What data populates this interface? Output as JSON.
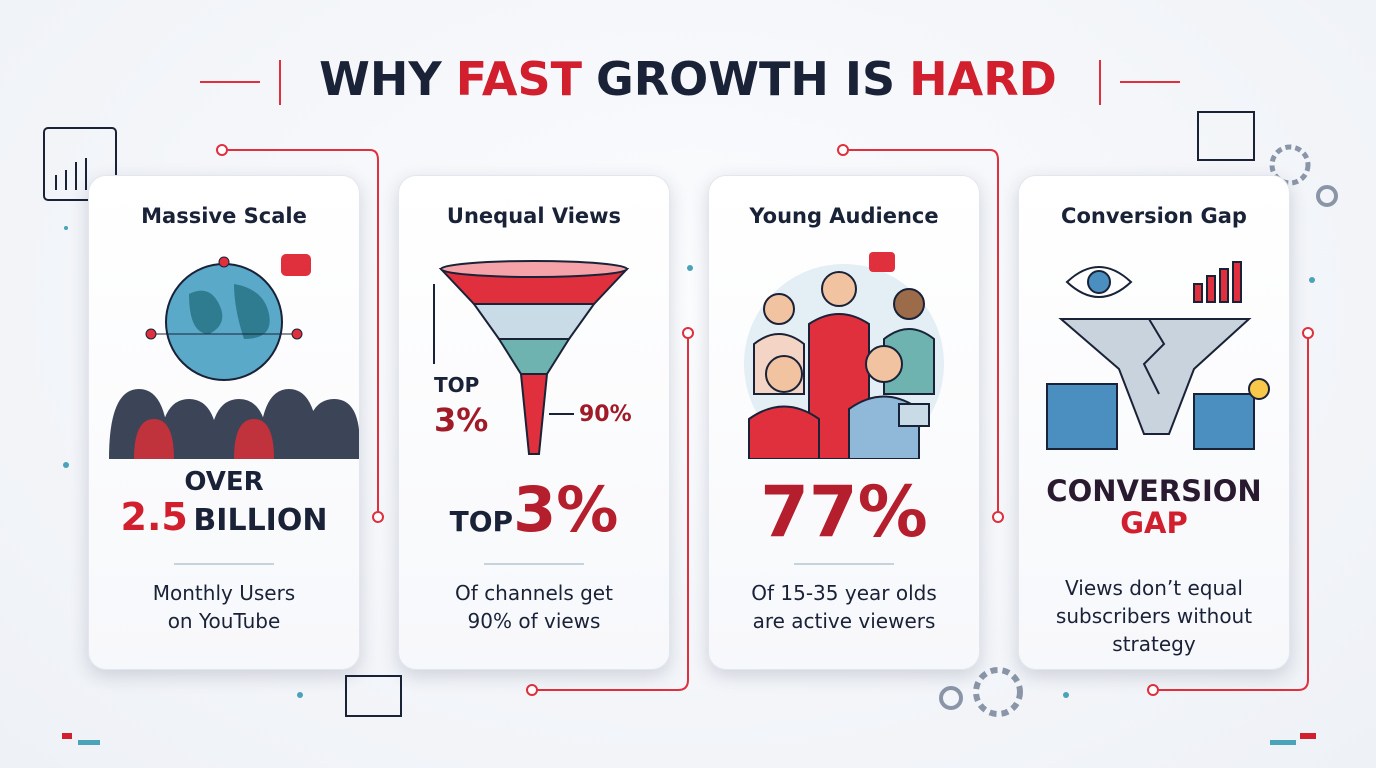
{
  "header": {
    "title": [
      {
        "text": "WHY",
        "accent": false
      },
      {
        "text": "FAST",
        "accent": true
      },
      {
        "text": "GROWTH IS",
        "accent": false
      },
      {
        "text": "HARD",
        "accent": true
      }
    ]
  },
  "cards": [
    {
      "heading": "Massive Scale",
      "stat": [
        {
          "text": "OVER",
          "style": "small"
        },
        {
          "text": "2.5",
          "style": "accent"
        },
        {
          "text": "BILLION",
          "style": "medium"
        }
      ],
      "description": [
        "Monthly Users",
        "on YouTube"
      ]
    },
    {
      "heading": "Unequal Views",
      "illustration_labels": [
        "TOP",
        "3%",
        "90%"
      ],
      "stat": [
        {
          "text": "TOP",
          "style": "small"
        },
        {
          "text": "3%",
          "style": "huge"
        }
      ],
      "description": [
        "Of channels get",
        "90% of views"
      ]
    },
    {
      "heading": "Young Audience",
      "stat": [
        {
          "text": "77%",
          "style": "huge"
        }
      ],
      "description": [
        "Of 15-35 year olds",
        "are active viewers"
      ]
    },
    {
      "heading": "Conversion Gap",
      "stat": [
        {
          "text": "CONVERSION",
          "style": "dark"
        },
        {
          "text": "GAP",
          "style": "red"
        }
      ],
      "description": [
        "Views don’t equal",
        "subscribers without",
        "strategy"
      ]
    }
  ]
}
